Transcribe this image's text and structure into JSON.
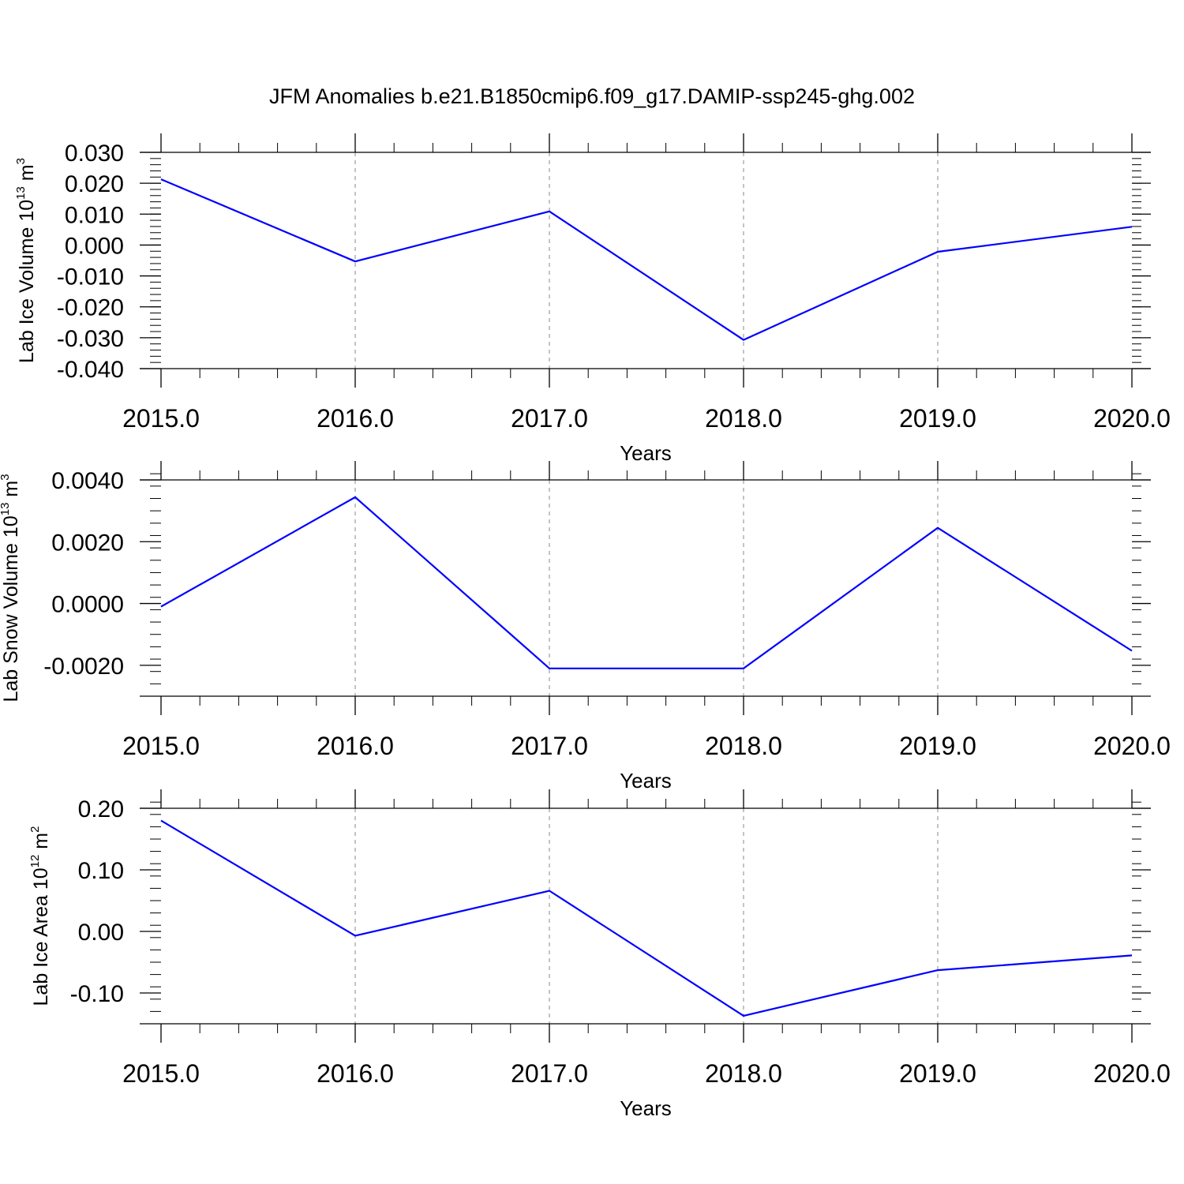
{
  "title": "JFM Anomalies b.e21.B1850cmip6.f09_g17.DAMIP-ssp245-ghg.002",
  "colors": {
    "line": "#0000ff",
    "axis": "#000000",
    "grid": "#888888"
  },
  "chart_data": [
    {
      "type": "line",
      "ylabel": {
        "text": "Lab Ice Volume 10",
        "exp": "13",
        "unit": " m",
        "unit_exp": "3"
      },
      "xlabel": "Years",
      "x": [
        2015,
        2016,
        2017,
        2018,
        2019,
        2020
      ],
      "x_tick_labels": [
        "2015.0",
        "2016.0",
        "2017.0",
        "2018.0",
        "2019.0",
        "2020.0"
      ],
      "xlim": [
        2015,
        2020
      ],
      "ylim": [
        -0.04,
        0.03
      ],
      "y_ticks": [
        0.03,
        0.02,
        0.01,
        0.0,
        -0.01,
        -0.02,
        -0.03,
        -0.04
      ],
      "y_tick_labels": [
        "0.030",
        "0.020",
        "0.010",
        "0.000",
        "-0.010",
        "-0.020",
        "-0.030",
        "-0.040"
      ],
      "y_minor_step": 0.002,
      "values": [
        0.0213,
        -0.0053,
        0.0109,
        -0.0307,
        -0.0022,
        0.0059
      ],
      "grid": "vertical dashed at major x ticks"
    },
    {
      "type": "line",
      "ylabel": {
        "text": "Lab Snow Volume 10",
        "exp": "13",
        "unit": " m",
        "unit_exp": "3"
      },
      "xlabel": "Years",
      "x": [
        2015,
        2016,
        2017,
        2018,
        2019,
        2020
      ],
      "x_tick_labels": [
        "2015.0",
        "2016.0",
        "2017.0",
        "2018.0",
        "2019.0",
        "2020.0"
      ],
      "xlim": [
        2015,
        2020
      ],
      "ylim": [
        -0.003,
        0.004
      ],
      "y_ticks": [
        0.004,
        0.002,
        0.0,
        -0.002
      ],
      "y_tick_labels": [
        "0.0040",
        "0.0020",
        "0.0000",
        "-0.0020"
      ],
      "y_minor_step": 0.0004,
      "values": [
        -0.0001,
        0.00344,
        -0.0021,
        -0.0021,
        0.00245,
        -0.00153
      ],
      "grid": "vertical dashed at major x ticks"
    },
    {
      "type": "line",
      "ylabel": {
        "text": "Lab Ice Area 10",
        "exp": "12",
        "unit": " m",
        "unit_exp": "2"
      },
      "xlabel": "Years",
      "x": [
        2015,
        2016,
        2017,
        2018,
        2019,
        2020
      ],
      "x_tick_labels": [
        "2015.0",
        "2016.0",
        "2017.0",
        "2018.0",
        "2019.0",
        "2020.0"
      ],
      "xlim": [
        2015,
        2020
      ],
      "ylim": [
        -0.15,
        0.2
      ],
      "y_ticks": [
        0.2,
        0.1,
        0.0,
        -0.1
      ],
      "y_tick_labels": [
        "0.20",
        "0.10",
        "0.00",
        "-0.10"
      ],
      "y_minor_step": 0.02,
      "values": [
        0.18,
        -0.007,
        0.066,
        -0.137,
        -0.063,
        -0.039
      ],
      "grid": "vertical dashed at major x ticks"
    }
  ]
}
